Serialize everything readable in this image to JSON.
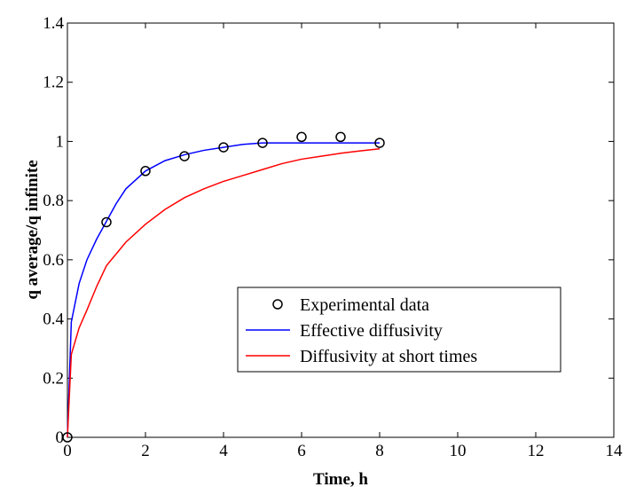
{
  "chart_data": {
    "type": "line",
    "title": "",
    "xlabel": "Time, h",
    "ylabel": "q average/q infinite",
    "xlim": [
      0,
      14
    ],
    "ylim": [
      0,
      1.4
    ],
    "xticks": [
      0,
      2,
      4,
      6,
      8,
      10,
      12,
      14
    ],
    "yticks": [
      0,
      0.2,
      0.4,
      0.6,
      0.8,
      1,
      1.2,
      1.4
    ],
    "xtick_labels": [
      "0",
      "2",
      "4",
      "6",
      "8",
      "10",
      "12",
      "14"
    ],
    "ytick_labels": [
      "0",
      "0.2",
      "0.4",
      "0.6",
      "0.8",
      "1",
      "1.2",
      "1.4"
    ],
    "grid": false,
    "legend_position": "lower-right",
    "series": [
      {
        "name": "Experimental data",
        "kind": "markers",
        "marker": "circle",
        "color": "#000000",
        "x": [
          0,
          1,
          2,
          3,
          4,
          5,
          6,
          7,
          8
        ],
        "y": [
          0,
          0.727,
          0.9,
          0.95,
          0.98,
          0.995,
          1.015,
          1.015,
          0.995
        ]
      },
      {
        "name": "Effective diffusivity",
        "kind": "line",
        "color": "#0000ff",
        "x": [
          0,
          0.1,
          0.3,
          0.5,
          0.75,
          1.0,
          1.25,
          1.5,
          1.75,
          2.0,
          2.5,
          3.0,
          3.5,
          4.0,
          4.5,
          5.0,
          6.0,
          7.0,
          8.0
        ],
        "y": [
          0,
          0.39,
          0.52,
          0.6,
          0.67,
          0.73,
          0.79,
          0.84,
          0.87,
          0.9,
          0.935,
          0.955,
          0.97,
          0.98,
          0.99,
          0.995,
          0.995,
          0.995,
          0.995
        ]
      },
      {
        "name": "Diffusivity at short times",
        "kind": "line",
        "color": "#ff0000",
        "x": [
          0,
          0.1,
          0.3,
          0.5,
          0.75,
          1.0,
          1.5,
          2.0,
          2.5,
          3.0,
          3.5,
          4.0,
          4.5,
          5.0,
          5.5,
          6.0,
          6.5,
          7.0,
          7.5,
          8.0
        ],
        "y": [
          0,
          0.28,
          0.37,
          0.43,
          0.51,
          0.58,
          0.66,
          0.72,
          0.77,
          0.81,
          0.84,
          0.865,
          0.885,
          0.905,
          0.925,
          0.94,
          0.95,
          0.96,
          0.968,
          0.975
        ]
      }
    ]
  }
}
